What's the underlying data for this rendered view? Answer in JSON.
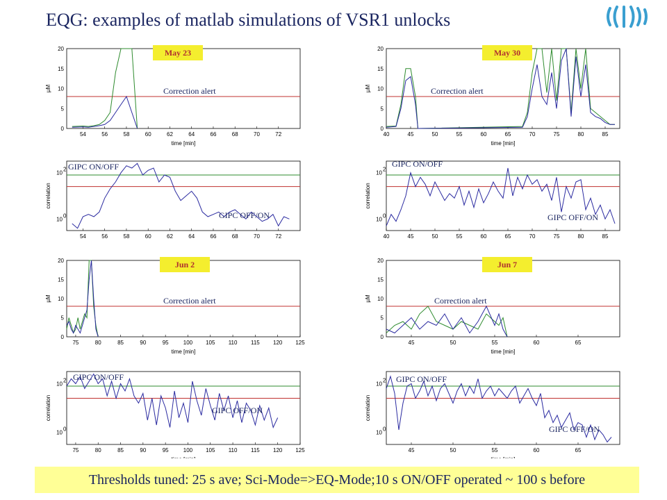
{
  "title": "EQG: examples of matlab simulations of VSR1 unlocks",
  "footer": "Thresholds tuned: 25 s ave; Sci-Mode=>EQ-Mode;10 s ON/OFF operated ~ 100 s before",
  "colors": {
    "title": "#1a2560",
    "tag_bg": "#f4ee2e",
    "tag_text": "#b0302f",
    "footer_bg": "#ffff96",
    "green_series": "#2e8b2e",
    "blue_series": "#2a2aa0",
    "threshold": "#c0302f"
  },
  "logo_icon": "virgo-wave-logo",
  "chart_data": [
    {
      "type": "line",
      "panel": "May 23 EQ",
      "tag": "May 23",
      "xlabel": "time [min]",
      "ylabel": "µM",
      "xlim": [
        52.5,
        74
      ],
      "ylim": [
        0,
        20
      ],
      "xticks": [
        54,
        56,
        58,
        60,
        62,
        64,
        66,
        68,
        70,
        72
      ],
      "yticks": [
        0,
        5,
        10,
        15,
        20
      ],
      "threshold": {
        "value": 8,
        "label": "Correction alert"
      },
      "series": [
        {
          "x": [
            53,
            54,
            54.5,
            55,
            55.5,
            56,
            56.5,
            57,
            57.5,
            58,
            58.5,
            59
          ],
          "y": [
            0.5,
            0.6,
            0.5,
            0.7,
            1,
            2,
            4,
            14,
            20,
            20,
            20,
            0
          ]
        },
        {
          "x": [
            53,
            54,
            54.5,
            55,
            55.5,
            56,
            56.5,
            57,
            57.5,
            58,
            58.5,
            59
          ],
          "y": [
            0.3,
            0.4,
            0.3,
            0.5,
            0.7,
            1,
            2,
            4,
            6,
            8,
            4,
            0
          ]
        }
      ]
    },
    {
      "type": "line",
      "panel": "May 30 EQ",
      "tag": "May 30",
      "xlabel": "time [min]",
      "ylabel": "µM",
      "xlim": [
        40,
        88
      ],
      "ylim": [
        0,
        20
      ],
      "xticks": [
        40,
        45,
        50,
        55,
        60,
        65,
        70,
        75,
        80,
        85
      ],
      "yticks": [
        0,
        5,
        10,
        15,
        20
      ],
      "threshold": {
        "value": 8,
        "label": "Correction alert"
      },
      "series": [
        {
          "x": [
            40,
            42,
            43,
            44,
            45,
            46,
            46.5,
            68,
            69,
            70,
            71,
            72,
            73,
            74,
            75,
            76,
            77,
            78,
            79,
            80,
            81,
            82,
            83,
            84,
            85,
            86,
            87
          ],
          "y": [
            0.5,
            0.6,
            6,
            15,
            15,
            8,
            0,
            0.5,
            4,
            14,
            20,
            20,
            9,
            20,
            7,
            20,
            20,
            4,
            20,
            10,
            20,
            5,
            4,
            3,
            2,
            1,
            1
          ]
        },
        {
          "x": [
            40,
            42,
            43,
            44,
            45,
            46,
            46.5,
            68,
            69,
            70,
            71,
            72,
            73,
            74,
            75,
            76,
            77,
            78,
            79,
            80,
            81,
            82,
            83,
            84,
            85,
            86,
            87
          ],
          "y": [
            0.3,
            0.5,
            5,
            12,
            13,
            6,
            0,
            0.3,
            3,
            10,
            16,
            8,
            6,
            14,
            5,
            17,
            20,
            3,
            18,
            8,
            16,
            4,
            3,
            2.5,
            1.5,
            1,
            1
          ]
        }
      ]
    },
    {
      "type": "line",
      "panel": "May 23 correlation",
      "tag": "",
      "xlabel": "",
      "ylabel": "correlation",
      "xlim": [
        52.5,
        74
      ],
      "ylim": [
        -0.5,
        2.5
      ],
      "yscale": "log",
      "xticks": [
        54,
        56,
        58,
        60,
        62,
        64,
        66,
        68,
        70,
        72
      ],
      "annotations": [
        "GIPC ON/OFF",
        "GIPC OFF/ON"
      ],
      "thresholds": [
        1.9,
        1.4
      ],
      "series": [
        {
          "x": [
            53,
            53.5,
            54,
            54.5,
            55,
            55.5,
            56,
            56.5,
            57,
            57.5,
            58,
            58.5,
            59,
            59.5,
            60,
            60.5,
            61,
            61.5,
            62,
            62.5,
            63,
            63.5,
            64,
            64.5,
            65,
            65.5,
            66,
            66.5,
            67,
            67.5,
            68,
            68.5,
            69,
            69.5,
            70,
            70.5,
            71,
            71.5,
            72,
            72.5,
            73
          ],
          "y": [
            -0.2,
            -0.4,
            0.1,
            0.2,
            0.1,
            0.3,
            0.9,
            1.3,
            1.6,
            2.0,
            2.3,
            2.2,
            2.4,
            1.9,
            2.1,
            2.2,
            1.6,
            1.9,
            1.8,
            1.2,
            0.8,
            1.0,
            1.2,
            0.9,
            0.3,
            0.1,
            0.2,
            0.3,
            0.1,
            0.3,
            0.4,
            0.2,
            0.0,
            0.3,
            0.1,
            -0.1,
            0.0,
            0.2,
            -0.3,
            0.1,
            0.0
          ]
        }
      ]
    },
    {
      "type": "line",
      "panel": "May 30 correlation",
      "tag": "",
      "xlabel": "",
      "ylabel": "correlation",
      "xlim": [
        40,
        88
      ],
      "ylim": [
        -0.5,
        2.5
      ],
      "yscale": "log",
      "xticks": [
        40,
        45,
        50,
        55,
        60,
        65,
        70,
        75,
        80,
        85
      ],
      "annotations": [
        "GIPC ON/OFF",
        "GIPC OFF/ON"
      ],
      "thresholds": [
        1.9,
        1.4
      ],
      "series": [
        {
          "x": [
            40,
            41,
            42,
            43,
            44,
            45,
            46,
            47,
            48,
            49,
            50,
            51,
            52,
            53,
            54,
            55,
            56,
            57,
            58,
            59,
            60,
            61,
            62,
            63,
            64,
            65,
            66,
            67,
            68,
            69,
            70,
            71,
            72,
            73,
            74,
            75,
            76,
            77,
            78,
            79,
            80,
            81,
            82,
            83,
            84,
            85,
            86,
            87
          ],
          "y": [
            -0.3,
            0.2,
            -0.1,
            0.4,
            1.0,
            2.0,
            1.4,
            1.8,
            1.5,
            1.0,
            1.6,
            1.2,
            0.8,
            1.1,
            0.9,
            1.4,
            0.6,
            1.2,
            0.5,
            1.3,
            0.7,
            1.1,
            1.6,
            1.2,
            0.9,
            2.2,
            1.0,
            1.8,
            1.3,
            1.9,
            1.5,
            1.7,
            1.2,
            1.5,
            0.8,
            1.8,
            0.3,
            1.4,
            0.9,
            1.6,
            1.7,
            0.4,
            0.9,
            0.2,
            0.6,
            0.0,
            0.4,
            -0.2
          ]
        }
      ]
    },
    {
      "type": "line",
      "panel": "Jun 2 EQ",
      "tag": "Jun 2",
      "xlabel": "time [min]",
      "ylabel": "µM",
      "xlim": [
        73,
        125
      ],
      "ylim": [
        0,
        20
      ],
      "xticks": [
        75,
        80,
        85,
        90,
        95,
        100,
        105,
        110,
        115,
        120,
        125
      ],
      "yticks": [
        0,
        5,
        10,
        15,
        20
      ],
      "threshold": {
        "value": 8,
        "label": "Correction alert"
      },
      "series": [
        {
          "x": [
            73,
            73.5,
            74,
            74.5,
            75,
            75.5,
            76,
            76.5,
            77,
            77.5,
            78,
            78.5,
            79,
            79.5,
            80
          ],
          "y": [
            2,
            5,
            3,
            1,
            2,
            5,
            2,
            4,
            6,
            5,
            20,
            20,
            8,
            3,
            0
          ]
        },
        {
          "x": [
            73,
            73.5,
            74,
            74.5,
            75,
            75.5,
            76,
            76.5,
            77,
            77.5,
            78,
            78.5,
            79,
            79.5,
            80
          ],
          "y": [
            3,
            4,
            2,
            1,
            3,
            2,
            1,
            3,
            5,
            7,
            15,
            20,
            10,
            2,
            0
          ]
        }
      ]
    },
    {
      "type": "line",
      "panel": "Jun 7 EQ",
      "tag": "Jun 7",
      "xlabel": "time [min]",
      "ylabel": "µM",
      "xlim": [
        42,
        70
      ],
      "ylim": [
        0,
        20
      ],
      "xticks": [
        45,
        50,
        55,
        60,
        65
      ],
      "yticks": [
        0,
        5,
        10,
        15,
        20
      ],
      "threshold": {
        "value": 8,
        "label": "Correction alert"
      },
      "series": [
        {
          "x": [
            42,
            43,
            44,
            45,
            46,
            47,
            48,
            49,
            50,
            51,
            52,
            53,
            54,
            55,
            55.5,
            56,
            56.5
          ],
          "y": [
            1,
            3,
            4,
            2,
            6,
            8,
            4,
            3,
            2,
            4,
            3,
            2,
            6,
            4,
            3,
            5,
            0
          ]
        },
        {
          "x": [
            42,
            43,
            44,
            45,
            46,
            47,
            48,
            49,
            50,
            51,
            52,
            53,
            54,
            55,
            55.5,
            56,
            56.5
          ],
          "y": [
            2,
            1,
            3,
            5,
            2,
            4,
            3,
            6,
            2,
            5,
            1,
            4,
            8,
            3,
            6,
            2,
            0
          ]
        }
      ]
    },
    {
      "type": "line",
      "panel": "Jun 2 correlation",
      "tag": "",
      "xlabel": "time [min]",
      "ylabel": "correlation",
      "xlim": [
        73,
        125
      ],
      "ylim": [
        -0.5,
        2.5
      ],
      "yscale": "log",
      "xticks": [
        75,
        80,
        85,
        90,
        95,
        100,
        105,
        110,
        115,
        120,
        125
      ],
      "annotations": [
        "GIPC ON/OFF",
        "GIPC OFF/ON"
      ],
      "thresholds": [
        1.9,
        1.4
      ],
      "series": [
        {
          "x": [
            73,
            74,
            75,
            76,
            77,
            78,
            79,
            80,
            81,
            82,
            83,
            84,
            85,
            86,
            87,
            88,
            89,
            90,
            91,
            92,
            93,
            94,
            95,
            96,
            97,
            98,
            99,
            100,
            101,
            102,
            103,
            104,
            105,
            106,
            107,
            108,
            109,
            110,
            111,
            112,
            113,
            114,
            115,
            116,
            117,
            118,
            119,
            120
          ],
          "y": [
            1.9,
            2.2,
            2.0,
            2.3,
            1.8,
            2.1,
            2.4,
            2.0,
            2.2,
            1.5,
            2.1,
            1.4,
            2.0,
            1.7,
            2.2,
            1.5,
            1.2,
            1.6,
            0.5,
            1.4,
            0.3,
            1.5,
            1.0,
            0.2,
            1.7,
            0.6,
            1.2,
            0.4,
            2.1,
            1.3,
            0.7,
            1.8,
            1.1,
            0.5,
            1.6,
            0.9,
            1.5,
            0.6,
            1.3,
            0.4,
            1.2,
            0.9,
            0.3,
            1.1,
            0.5,
            1.0,
            0.2,
            0.6
          ]
        }
      ]
    },
    {
      "type": "line",
      "panel": "Jun 7 correlation",
      "tag": "",
      "xlabel": "time [min]",
      "ylabel": "correlation",
      "xlim": [
        42,
        70
      ],
      "ylim": [
        -0.5,
        2.5
      ],
      "yscale": "log",
      "xticks": [
        45,
        50,
        55,
        60,
        65
      ],
      "annotations": [
        "GIPC ON/OFF",
        "GIPC OFF/ON"
      ],
      "thresholds": [
        1.9,
        1.4
      ],
      "series": [
        {
          "x": [
            42,
            42.5,
            43,
            43.5,
            44,
            44.5,
            45,
            45.5,
            46,
            46.5,
            47,
            47.5,
            48,
            48.5,
            49,
            49.5,
            50,
            50.5,
            51,
            51.5,
            52,
            52.5,
            53,
            53.5,
            54,
            54.5,
            55,
            55.5,
            56,
            56.5,
            57,
            57.5,
            58,
            58.5,
            59,
            59.5,
            60,
            60.5,
            61,
            61.5,
            62,
            62.5,
            63,
            63.5,
            64,
            64.5,
            65,
            65.5,
            66,
            66.5,
            67,
            67.5,
            68,
            68.5,
            69
          ],
          "y": [
            1.8,
            2.3,
            1.6,
            0.1,
            1.2,
            1.9,
            2.0,
            1.4,
            1.7,
            2.1,
            1.5,
            1.9,
            1.3,
            1.8,
            2.0,
            1.6,
            1.2,
            1.7,
            2.0,
            1.5,
            1.9,
            1.6,
            2.2,
            1.4,
            1.7,
            1.9,
            1.5,
            1.8,
            1.6,
            1.4,
            1.7,
            1.9,
            1.2,
            1.5,
            1.8,
            1.4,
            1.1,
            1.6,
            0.6,
            0.9,
            0.4,
            0.7,
            0.2,
            0.5,
            0.8,
            0.1,
            0.4,
            0.3,
            -0.2,
            0.3,
            -0.3,
            0.1,
            -0.1,
            -0.4,
            -0.2
          ]
        }
      ]
    }
  ]
}
